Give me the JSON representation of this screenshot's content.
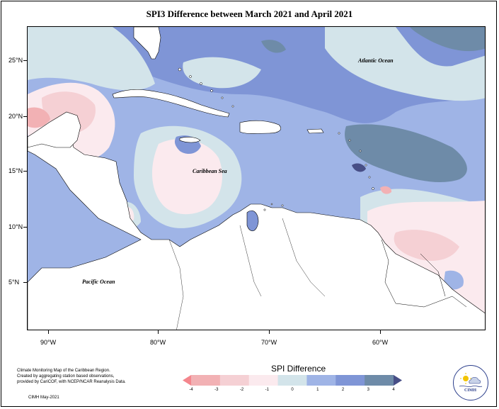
{
  "title": "SPI3 Difference between March 2021 and April 2021",
  "latitude_labels": [
    "25°N",
    "20°N",
    "15°N",
    "10°N",
    "5°N"
  ],
  "longitude_labels": [
    "90°W",
    "80°W",
    "70°W",
    "60°W"
  ],
  "map_labels": {
    "atlantic": "Atlantic Ocean",
    "caribbean": "Caribbean Sea",
    "pacific": "Pacific Ocean"
  },
  "credits": {
    "line1": "Climate Monitoring Map of the Caribbean Region.",
    "line2": "Created by aggregating station based observations,",
    "line3": "provided by CariCOF, with NCEP/NCAR Reanalysis Data.",
    "issued": "CIMH May-2021"
  },
  "legend": {
    "title": "SPI Difference",
    "ticks": [
      "-4",
      "-3",
      "-2",
      "-1",
      "0",
      "1",
      "2",
      "3",
      "4"
    ],
    "colors": [
      "#f4868d",
      "#f2b1b4",
      "#f5d0d4",
      "#fbeaee",
      "#d3e4ea",
      "#9fb4e6",
      "#7f95d6",
      "#6e8ba8",
      "#474e86"
    ]
  },
  "logo": {
    "text": "CIMH"
  },
  "colors": {
    "very_wet": "#474e86",
    "wet": "#6e8ba8",
    "moderately_wet": "#7f95d6",
    "slightly_wet": "#9fb4e6",
    "near_normal": "#d3e4ea",
    "slightly_dry": "#fbeaee",
    "moderately_dry": "#f5d0d4",
    "dry": "#f2b1b4",
    "very_dry": "#f4868d",
    "land": "#ffffff"
  }
}
